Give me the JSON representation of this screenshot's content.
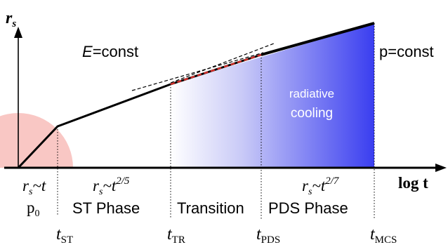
{
  "axes": {
    "y_label": "r",
    "y_label_sub": "s",
    "x_label": "log t"
  },
  "regions": {
    "energy": {
      "lhs": "E",
      "rhs": "=const"
    },
    "pressure": "p=const",
    "cooling_line1": "radiative",
    "cooling_line2": "cooling"
  },
  "scalings": {
    "free": {
      "r": "r",
      "sub": "s",
      "tilde_t": "~t"
    },
    "st": {
      "r": "r",
      "sub": "s",
      "tilde_t": "~t",
      "exp": "2/5"
    },
    "pds": {
      "r": "r",
      "sub": "s",
      "tilde_t": "~t",
      "exp": "2/7"
    }
  },
  "phases": {
    "p0": {
      "p": "p",
      "sub": "0"
    },
    "st": "ST Phase",
    "transition": "Transition",
    "pds": "PDS Phase"
  },
  "times": {
    "st": {
      "t": "t",
      "sub": "ST"
    },
    "tr": {
      "t": "t",
      "sub": "TR"
    },
    "pds": {
      "t": "t",
      "sub": "PDS"
    },
    "mcs": {
      "t": "t",
      "sub": "MCS"
    }
  },
  "colors": {
    "free_expansion_fill": "#f9c7c4",
    "gradient_start": "#ffffff",
    "gradient_end": "#3a3ef0",
    "red_dashes": "#d9302c",
    "line": "#000000"
  }
}
